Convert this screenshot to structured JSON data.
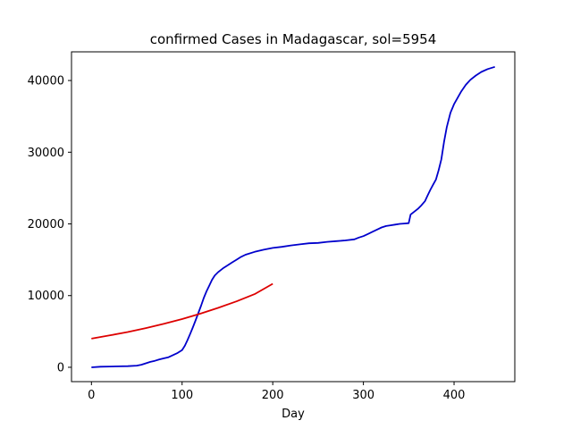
{
  "chart_data": {
    "type": "line",
    "title": "confirmed Cases in Madagascar, sol=5954",
    "xlabel": "Day",
    "ylabel": "",
    "xlim": [
      -22,
      467
    ],
    "ylim": [
      -2000,
      44000
    ],
    "xticks": [
      0,
      100,
      200,
      300,
      400
    ],
    "yticks": [
      0,
      10000,
      20000,
      30000,
      40000
    ],
    "grid": false,
    "series": [
      {
        "color": "#0000cc",
        "points": [
          [
            0,
            0
          ],
          [
            10,
            80
          ],
          [
            20,
            110
          ],
          [
            30,
            130
          ],
          [
            40,
            160
          ],
          [
            50,
            230
          ],
          [
            55,
            350
          ],
          [
            60,
            550
          ],
          [
            65,
            750
          ],
          [
            70,
            900
          ],
          [
            75,
            1100
          ],
          [
            80,
            1250
          ],
          [
            85,
            1400
          ],
          [
            90,
            1700
          ],
          [
            95,
            2000
          ],
          [
            100,
            2400
          ],
          [
            103,
            3000
          ],
          [
            106,
            3800
          ],
          [
            109,
            4700
          ],
          [
            112,
            5600
          ],
          [
            115,
            6600
          ],
          [
            118,
            7600
          ],
          [
            121,
            8600
          ],
          [
            124,
            9700
          ],
          [
            127,
            10600
          ],
          [
            130,
            11400
          ],
          [
            133,
            12200
          ],
          [
            136,
            12800
          ],
          [
            140,
            13300
          ],
          [
            145,
            13800
          ],
          [
            150,
            14200
          ],
          [
            155,
            14600
          ],
          [
            160,
            15000
          ],
          [
            165,
            15400
          ],
          [
            170,
            15700
          ],
          [
            180,
            16100
          ],
          [
            190,
            16400
          ],
          [
            200,
            16650
          ],
          [
            210,
            16800
          ],
          [
            220,
            17000
          ],
          [
            230,
            17150
          ],
          [
            240,
            17300
          ],
          [
            250,
            17350
          ],
          [
            260,
            17500
          ],
          [
            270,
            17600
          ],
          [
            280,
            17700
          ],
          [
            290,
            17850
          ],
          [
            295,
            18100
          ],
          [
            300,
            18300
          ],
          [
            305,
            18600
          ],
          [
            310,
            18900
          ],
          [
            315,
            19200
          ],
          [
            320,
            19500
          ],
          [
            325,
            19700
          ],
          [
            330,
            19800
          ],
          [
            335,
            19900
          ],
          [
            340,
            20000
          ],
          [
            345,
            20050
          ],
          [
            350,
            20100
          ],
          [
            352,
            21300
          ],
          [
            356,
            21700
          ],
          [
            360,
            22100
          ],
          [
            364,
            22600
          ],
          [
            368,
            23200
          ],
          [
            371,
            24000
          ],
          [
            374,
            24800
          ],
          [
            377,
            25500
          ],
          [
            380,
            26200
          ],
          [
            383,
            27500
          ],
          [
            386,
            29000
          ],
          [
            389,
            31500
          ],
          [
            392,
            33500
          ],
          [
            396,
            35500
          ],
          [
            400,
            36700
          ],
          [
            404,
            37600
          ],
          [
            408,
            38500
          ],
          [
            413,
            39400
          ],
          [
            418,
            40100
          ],
          [
            424,
            40700
          ],
          [
            430,
            41200
          ],
          [
            437,
            41600
          ],
          [
            445,
            41900
          ]
        ]
      },
      {
        "color": "#dd0000",
        "points": [
          [
            0,
            4000
          ],
          [
            20,
            4440
          ],
          [
            40,
            4920
          ],
          [
            60,
            5470
          ],
          [
            80,
            6060
          ],
          [
            100,
            6730
          ],
          [
            120,
            7470
          ],
          [
            140,
            8300
          ],
          [
            160,
            9200
          ],
          [
            180,
            10200
          ],
          [
            200,
            11650
          ]
        ]
      }
    ]
  }
}
